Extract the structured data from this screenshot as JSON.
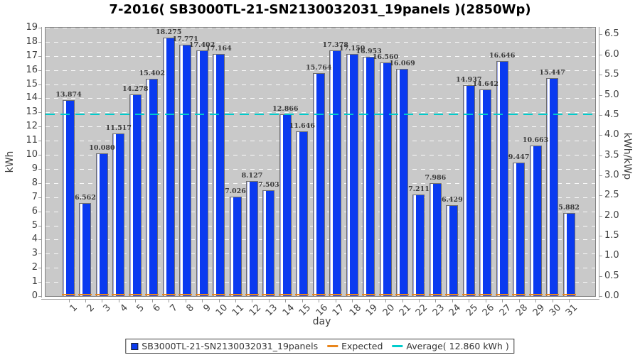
{
  "title": "7-2016( SB3000TL-21-SN2130032031_19panels )(2850Wp)",
  "colors": {
    "bar": "#0a3af0",
    "bar_highlight": "#ffffff",
    "expected": "#e9861c",
    "average": "#00cccc",
    "plot_background": "#c9c9c9",
    "grid": "#ffffff"
  },
  "chart_data": {
    "type": "bar",
    "title": "7-2016( SB3000TL-21-SN2130032031_19panels )(2850Wp)",
    "xlabel": "day",
    "ylabel": "kWh",
    "ylabel_right": "kWh/kWp",
    "ylim": [
      0,
      19
    ],
    "ylim_right": [
      0,
      6.5
    ],
    "y_tick_step": 1,
    "y_tick_step_right": 0.5,
    "plant_kwp": 2.85,
    "grid": true,
    "legend_position": "bottom",
    "categories": [
      "1",
      "2",
      "3",
      "4",
      "5",
      "6",
      "7",
      "8",
      "9",
      "10",
      "11",
      "12",
      "13",
      "14",
      "15",
      "16",
      "17",
      "18",
      "19",
      "20",
      "21",
      "22",
      "23",
      "24",
      "25",
      "26",
      "27",
      "28",
      "29",
      "30",
      "31"
    ],
    "series": [
      {
        "name": "SB3000TL-21-SN2130032031_19panels",
        "color": "#0a3af0",
        "bar_value_labels": true,
        "values": [
          13.874,
          6.562,
          10.08,
          11.517,
          14.278,
          15.402,
          18.275,
          17.771,
          17.402,
          17.164,
          7.026,
          8.127,
          7.503,
          12.866,
          11.646,
          15.764,
          17.378,
          17.15,
          16.953,
          16.56,
          16.069,
          7.211,
          7.986,
          6.429,
          14.937,
          14.642,
          16.646,
          9.447,
          10.663,
          15.447,
          5.882
        ]
      },
      {
        "name": "Expected",
        "color": "#e9861c",
        "drawn_at_baseline": true,
        "values": []
      }
    ],
    "average_line": {
      "label": "Average( 12.860 kWh )",
      "value": 12.86,
      "color": "#00cccc"
    }
  },
  "legend": {
    "items": [
      {
        "label": "SB3000TL-21-SN2130032031_19panels",
        "marker": "square",
        "color": "#0a3af0"
      },
      {
        "label": "Expected",
        "marker": "line",
        "color": "#e9861c"
      },
      {
        "label": "Average( 12.860 kWh )",
        "marker": "line",
        "color": "#00cccc"
      }
    ]
  }
}
